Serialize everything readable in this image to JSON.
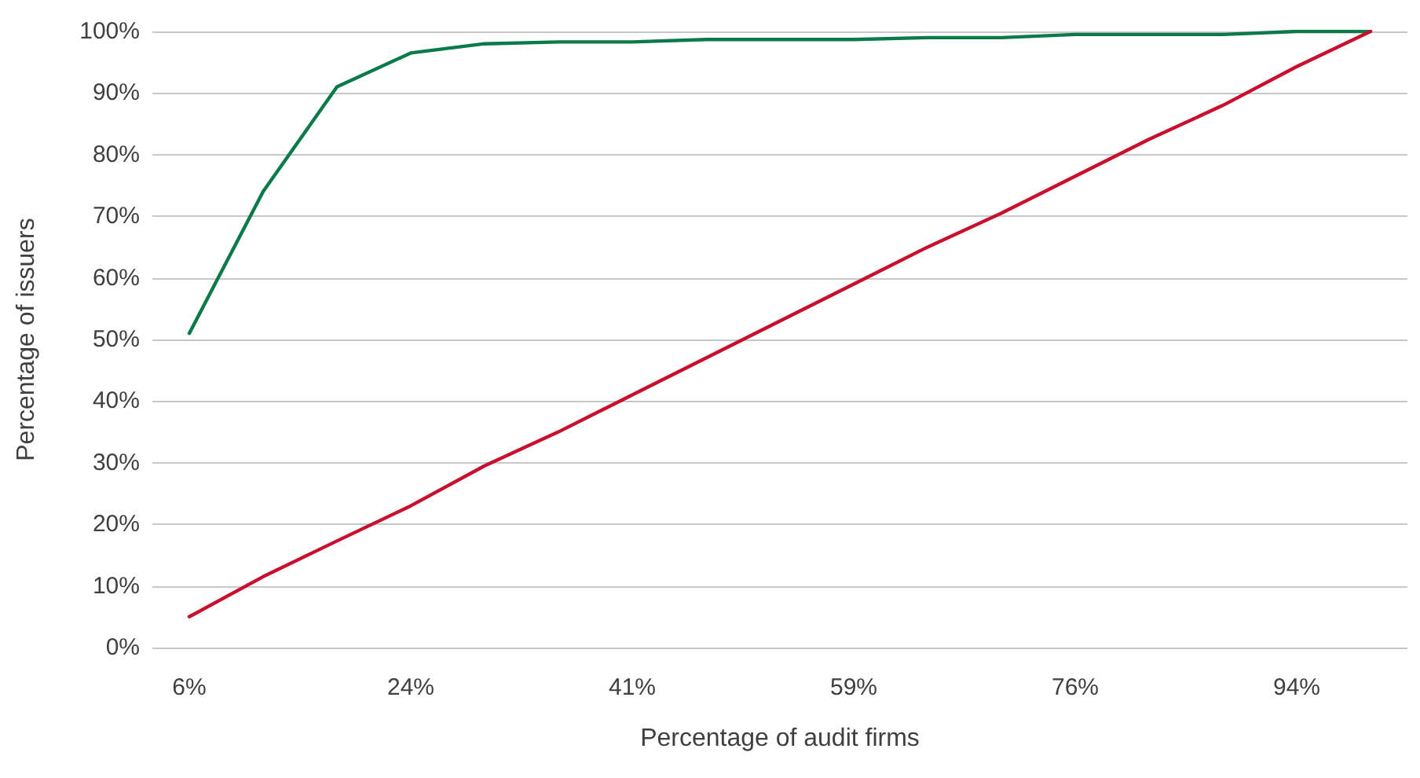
{
  "chart_data": {
    "type": "line",
    "xlabel": "Percentage of audit firms",
    "ylabel": "Percentage of issuers",
    "categories": [
      "6%",
      null,
      null,
      "24%",
      null,
      null,
      "41%",
      null,
      null,
      "59%",
      null,
      null,
      "76%",
      null,
      null,
      "94%",
      null
    ],
    "series": [
      {
        "color": "#0b7a4b",
        "values": [
          51,
          74,
          91,
          96.5,
          98,
          98.3,
          98.3,
          98.7,
          98.7,
          98.7,
          99,
          99,
          99.5,
          99.5,
          99.5,
          100,
          100
        ]
      },
      {
        "color": "#c8102e",
        "values": [
          5,
          11.5,
          17.3,
          23,
          29.5,
          35,
          41,
          47,
          53,
          59,
          65,
          70.5,
          76.5,
          82.5,
          88,
          94.3,
          100
        ]
      }
    ],
    "ylim": [
      0,
      100
    ],
    "yticks": [
      {
        "value": 0,
        "label": "0%"
      },
      {
        "value": 10,
        "label": "10%"
      },
      {
        "value": 20,
        "label": "20%"
      },
      {
        "value": 30,
        "label": "30%"
      },
      {
        "value": 40,
        "label": "40%"
      },
      {
        "value": 50,
        "label": "50%"
      },
      {
        "value": 60,
        "label": "60%"
      },
      {
        "value": 70,
        "label": "70%"
      },
      {
        "value": 80,
        "label": "80%"
      },
      {
        "value": 90,
        "label": "90%"
      },
      {
        "value": 100,
        "label": "100%"
      }
    ],
    "grid": "y",
    "marker": "none",
    "line_style": "solid"
  }
}
